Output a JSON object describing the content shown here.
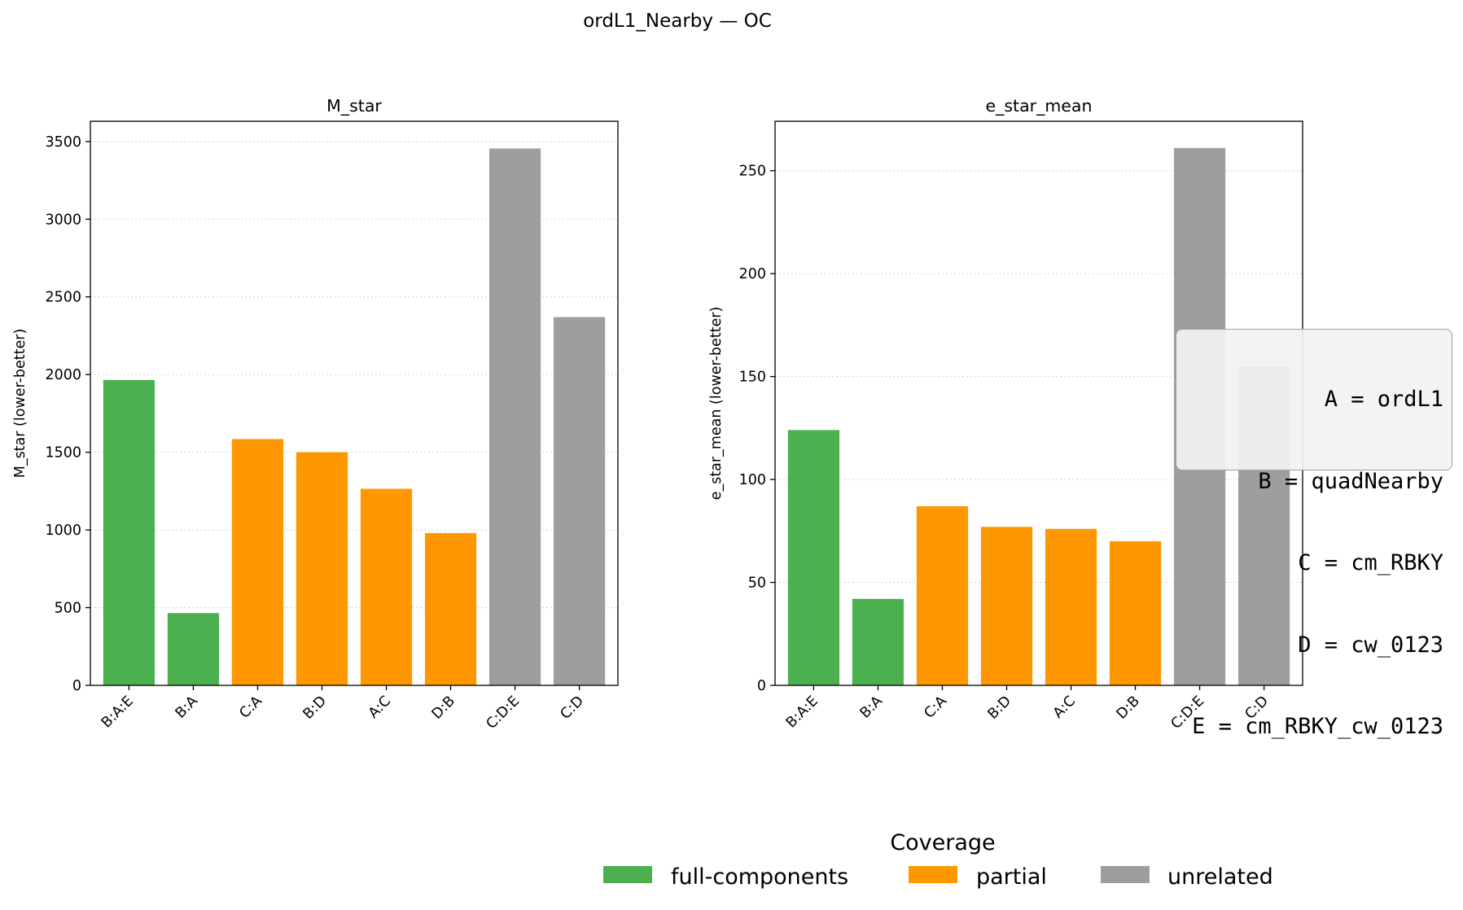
{
  "figure": {
    "title": "ordL1_Nearby — OC"
  },
  "key": {
    "lines": [
      "A = ordL1",
      "B = quadNearby",
      "C = cm_RBKY",
      "D = cw_0123",
      "E = cm_RBKY_cw_0123"
    ]
  },
  "legend": {
    "title": "Coverage",
    "items": [
      {
        "label": "full-components",
        "color": "#4caf50"
      },
      {
        "label": "partial",
        "color": "#ff9800"
      },
      {
        "label": "unrelated",
        "color": "#9e9e9e"
      }
    ]
  },
  "chart_data": [
    {
      "type": "bar",
      "title": "M_star",
      "xlabel": "",
      "ylabel": "M_star (lower-better)",
      "categories": [
        "B:A:E",
        "B:A",
        "C:A",
        "B:D",
        "A:C",
        "D:B",
        "C:D:E",
        "C:D"
      ],
      "values": [
        1965,
        465,
        1585,
        1500,
        1265,
        980,
        3455,
        2370
      ],
      "coverage": [
        "full-components",
        "full-components",
        "partial",
        "partial",
        "partial",
        "partial",
        "unrelated",
        "unrelated"
      ],
      "ylim": [
        0,
        3630
      ],
      "yticks": [
        0,
        500,
        1000,
        1500,
        2000,
        2500,
        3000,
        3500
      ],
      "grid": "y-dotted"
    },
    {
      "type": "bar",
      "title": "e_star_mean",
      "xlabel": "",
      "ylabel": "e_star_mean (lower-better)",
      "categories": [
        "B:A:E",
        "B:A",
        "C:A",
        "B:D",
        "A:C",
        "D:B",
        "C:D:E",
        "C:D"
      ],
      "values": [
        124,
        42,
        87,
        77,
        76,
        70,
        261,
        155
      ],
      "coverage": [
        "full-components",
        "full-components",
        "partial",
        "partial",
        "partial",
        "partial",
        "unrelated",
        "unrelated"
      ],
      "ylim": [
        0,
        274
      ],
      "yticks": [
        0,
        50,
        100,
        150,
        200,
        250
      ],
      "grid": "y-dotted"
    }
  ]
}
